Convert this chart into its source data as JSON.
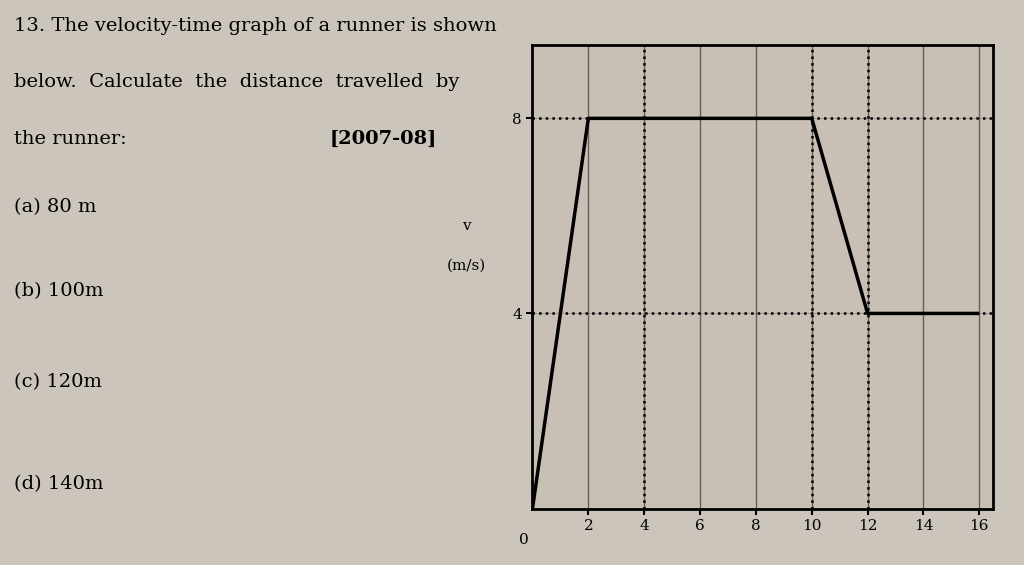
{
  "x_ticks": [
    2,
    4,
    6,
    8,
    10,
    12,
    14,
    16
  ],
  "y_ticks": [
    4,
    8
  ],
  "xlim": [
    0,
    16.5
  ],
  "ylim": [
    0,
    9.5
  ],
  "graph_points": [
    [
      0,
      0
    ],
    [
      2,
      8
    ],
    [
      10,
      8
    ],
    [
      12,
      4
    ],
    [
      16,
      4
    ]
  ],
  "hline_y_values": [
    4,
    8
  ],
  "vline_x_values": [
    4,
    10,
    12
  ],
  "background_color": "#ccc5bb",
  "line_color": "#000000",
  "dotted_line_color": "#000000",
  "label_year": "[2007-08]",
  "answers": [
    "(a) 80 m",
    "(b) 100m",
    "(c) 120m",
    "(d) 140m"
  ],
  "graph_bg": "#c8c0b5",
  "text_lines": [
    "13. The velocity-time graph of a runner is shown",
    "below.  Calculate  the  distance  travelled  by",
    "the runner:"
  ],
  "ylabel_line1": "v",
  "ylabel_line2": "(m/s)"
}
